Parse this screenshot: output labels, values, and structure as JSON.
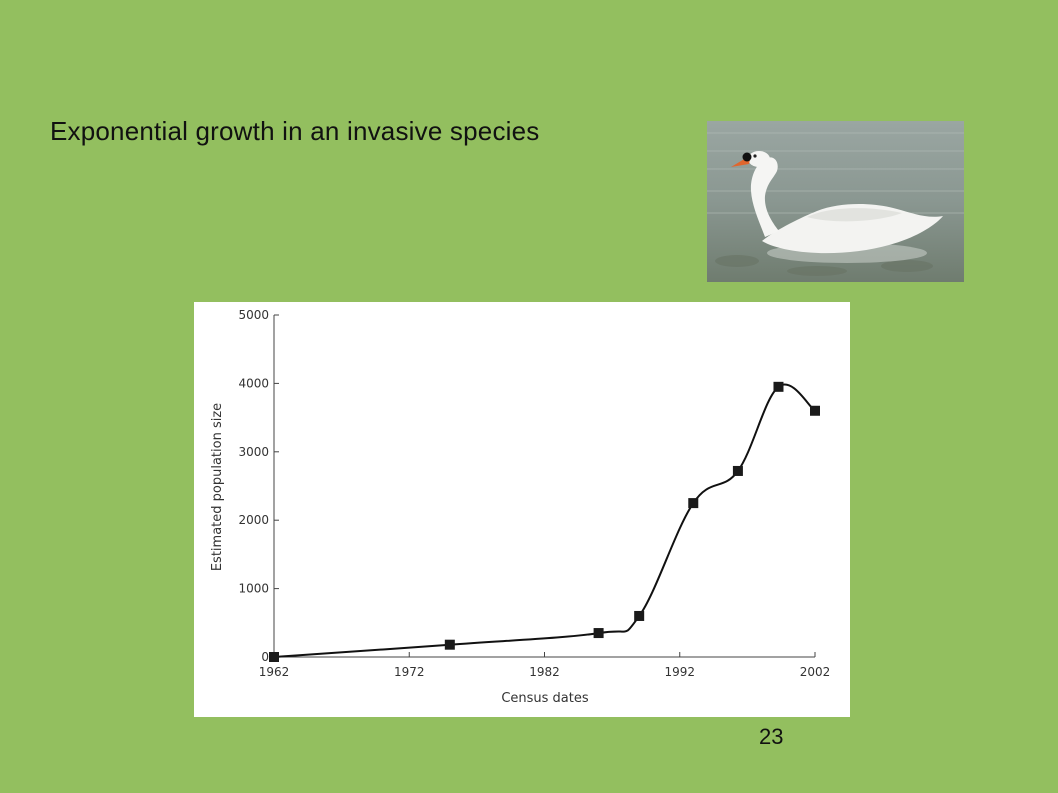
{
  "slide": {
    "title": "Exponential growth in an invasive species",
    "page_number": "23"
  },
  "photo": {
    "subject": "swan-photo"
  },
  "colors": {
    "background": "#93bf5f",
    "panel": "#ffffff",
    "line": "#111111",
    "marker": "#1a1a1a"
  },
  "chart_data": {
    "type": "line",
    "title": "",
    "xlabel": "Census dates",
    "ylabel": "Estimated population size",
    "xlim": [
      1962,
      2002
    ],
    "ylim": [
      0,
      5000
    ],
    "x_ticks": [
      1962,
      1972,
      1982,
      1992,
      2002
    ],
    "y_ticks": [
      0,
      1000,
      2000,
      3000,
      4000,
      5000
    ],
    "grid": false,
    "legend": "none",
    "series": [
      {
        "x": [
          1962,
          1975,
          1986,
          1989,
          1993,
          1996.3,
          1999.3,
          2002
        ],
        "y": [
          0,
          180,
          350,
          600,
          2250,
          2720,
          3950,
          3600
        ]
      }
    ]
  }
}
